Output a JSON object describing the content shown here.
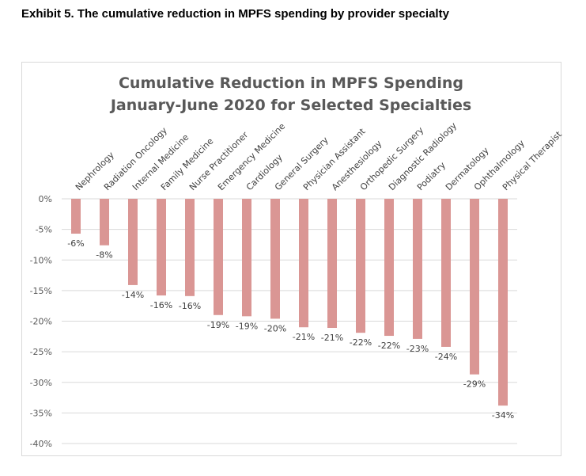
{
  "header": {
    "exhibit_title": "Exhibit 5. The cumulative reduction in MPFS spending by provider specialty"
  },
  "chart_data": {
    "type": "bar",
    "title_lines": [
      "Cumulative Reduction in MPFS Spending",
      "January-June 2020 for Selected Specialties"
    ],
    "categories": [
      "Nephrology",
      "Radiation Oncology",
      "Internal Medicine",
      "Family Medicine",
      "Nurse Practitioner",
      "Emergency Medicine",
      "Cardiology",
      "General Surgery",
      "Physician Assistant",
      "Anesthesiology",
      "Orthopedic Surgery",
      "Diagnostic Radiology",
      "Podiatry",
      "Dermatology",
      "Ophthalmology",
      "Physical Therapist"
    ],
    "values": [
      -5.7,
      -7.6,
      -14.1,
      -15.8,
      -15.9,
      -19.0,
      -19.2,
      -19.6,
      -21.0,
      -21.1,
      -21.9,
      -22.4,
      -22.9,
      -24.2,
      -28.7,
      -33.8
    ],
    "data_labels": [
      "-6%",
      "-8%",
      "-14%",
      "-16%",
      "-16%",
      "-19%",
      "-19%",
      "-20%",
      "-21%",
      "-21%",
      "-22%",
      "-22%",
      "-23%",
      "-24%",
      "-29%",
      "-34%"
    ],
    "y_ticks": [
      0,
      -5,
      -10,
      -15,
      -20,
      -25,
      -30,
      -35,
      -40
    ],
    "y_tick_labels": [
      "0%",
      "-5%",
      "-10%",
      "-15%",
      "-20%",
      "-25%",
      "-30%",
      "-35%",
      "-40%"
    ],
    "ylim": [
      -40,
      0
    ],
    "xlabel": "",
    "ylabel": "",
    "grid": true,
    "bar_color": "#da9694",
    "grid_color": "#d9d9d9"
  }
}
